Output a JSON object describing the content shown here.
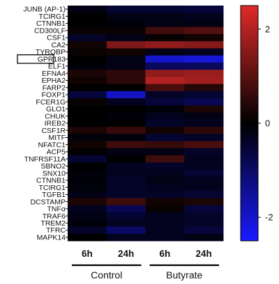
{
  "chart_data": {
    "type": "heatmap",
    "title": "",
    "xlabel": "",
    "ylabel": "",
    "rows": [
      "JUNB (AP-1)",
      "TCIRG1",
      "CTNNB1",
      "CD300LF",
      "CSF1",
      "CA2",
      "TYROBP",
      "GPR183",
      "ELF1",
      "EFNA4",
      "EPHA2",
      "FARP2",
      "FOXP1",
      "FCER1G",
      "GLO1",
      "CHUK",
      "IREB2",
      "CSF1R",
      "MITF",
      "NFATC1",
      "ACP5",
      "TNFRSF11A",
      "SBNO2",
      "SNX10",
      "CTNNB1",
      "TCIRG1",
      "TGFB1",
      "DCSTAMP",
      "TNFα",
      "TRAF6",
      "TREM2",
      "TFRC",
      "MAPK14"
    ],
    "highlighted_row": "GPR183",
    "columns": [
      "6h",
      "24h",
      "6h",
      "24h"
    ],
    "groups": [
      {
        "label": "Control",
        "columns": [
          0,
          1
        ]
      },
      {
        "label": "Butyrate",
        "columns": [
          2,
          3
        ]
      }
    ],
    "colorscale": {
      "min": -2.5,
      "max": 2.5,
      "low": "#1a1aff",
      "mid": "#000000",
      "high": "#e02a2a",
      "ticks": [
        2,
        0,
        -2
      ]
    },
    "values": [
      [
        -0.2,
        -0.5,
        -0.5,
        -0.6
      ],
      [
        0.0,
        -0.2,
        -0.2,
        -0.3
      ],
      [
        0.0,
        -0.1,
        -0.2,
        -0.2
      ],
      [
        0.1,
        0.1,
        0.7,
        0.9
      ],
      [
        -0.4,
        -0.2,
        0.1,
        0.2
      ],
      [
        0.2,
        1.4,
        1.6,
        1.5
      ],
      [
        0.1,
        0.2,
        -0.2,
        -0.3
      ],
      [
        0.0,
        -0.2,
        -2.0,
        -2.1
      ],
      [
        -0.1,
        -0.2,
        -0.9,
        -0.9
      ],
      [
        0.3,
        0.5,
        1.6,
        1.7
      ],
      [
        0.2,
        0.5,
        2.0,
        1.8
      ],
      [
        0.0,
        0.0,
        0.8,
        0.4
      ],
      [
        -0.6,
        -1.9,
        -0.4,
        -0.5
      ],
      [
        0.1,
        -0.3,
        -0.6,
        -0.8
      ],
      [
        0.0,
        0.0,
        -0.1,
        0.3
      ],
      [
        0.0,
        -0.1,
        -0.3,
        -0.2
      ],
      [
        0.0,
        0.0,
        -0.4,
        -0.3
      ],
      [
        0.3,
        0.6,
        0.2,
        0.5
      ],
      [
        -0.1,
        -0.1,
        -0.5,
        -0.4
      ],
      [
        0.2,
        0.7,
        0.6,
        0.8
      ],
      [
        0.0,
        -0.2,
        -0.2,
        -0.4
      ],
      [
        -0.5,
        0.0,
        0.7,
        -0.3
      ],
      [
        0.0,
        -0.3,
        -0.4,
        -0.3
      ],
      [
        -0.1,
        -0.3,
        -0.3,
        -0.5
      ],
      [
        -0.1,
        -0.4,
        -0.2,
        -0.3
      ],
      [
        -0.1,
        -0.4,
        -0.3,
        -0.3
      ],
      [
        -0.2,
        -0.4,
        -0.4,
        -0.5
      ],
      [
        0.3,
        0.7,
        0.2,
        0.3
      ],
      [
        -0.3,
        -0.8,
        0.1,
        -0.6
      ],
      [
        -0.2,
        -0.5,
        -0.3,
        -0.4
      ],
      [
        -0.1,
        -0.3,
        -0.3,
        -0.4
      ],
      [
        -0.4,
        -1.0,
        -0.3,
        -0.6
      ],
      [
        0.0,
        -0.3,
        -0.3,
        -0.2
      ]
    ]
  }
}
